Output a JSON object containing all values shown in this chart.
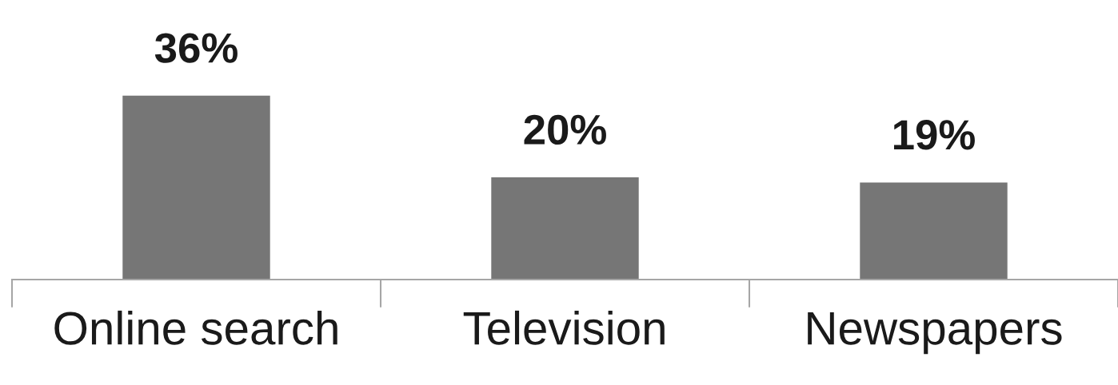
{
  "chart_data": {
    "type": "bar",
    "categories": [
      "Online search",
      "Television",
      "Newspapers"
    ],
    "values": [
      36,
      20,
      19
    ],
    "value_labels": [
      "36%",
      "20%",
      "19%"
    ],
    "color": "#767676",
    "grid": false,
    "legend": false
  }
}
